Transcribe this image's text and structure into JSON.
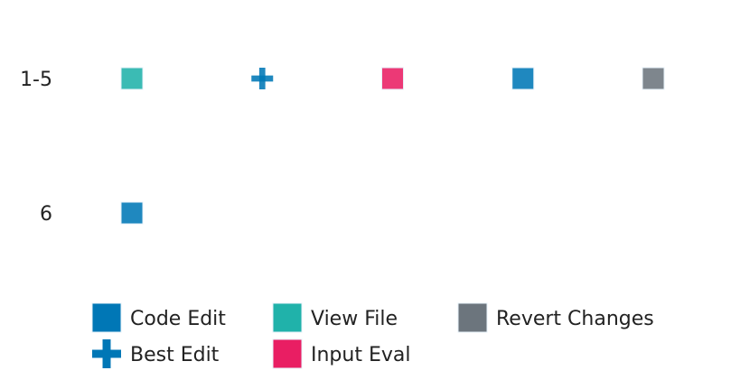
{
  "chart_data": {
    "type": "scatter",
    "title": "",
    "xlabel": "",
    "ylabel": "",
    "grid": false,
    "legend_position": "bottom",
    "row_labels": [
      "1-5",
      "6"
    ],
    "rows": [
      {
        "label": "1-5",
        "steps": [
          {
            "step": 1,
            "action": "View File"
          },
          {
            "step": 2,
            "action": "Best Edit"
          },
          {
            "step": 3,
            "action": "Input Eval"
          },
          {
            "step": 4,
            "action": "Code Edit"
          },
          {
            "step": 5,
            "action": "Revert Changes"
          }
        ]
      },
      {
        "label": "6",
        "steps": [
          {
            "step": 1,
            "action": "Code Edit"
          }
        ]
      }
    ],
    "legend": [
      {
        "name": "Code Edit",
        "color": "#0077b6",
        "marker": "square"
      },
      {
        "name": "View File",
        "color": "#20b2aa",
        "marker": "square"
      },
      {
        "name": "Revert Changes",
        "color": "#6c757d",
        "marker": "square"
      },
      {
        "name": "Best Edit",
        "color": "#0077b6",
        "marker": "plus"
      },
      {
        "name": "Input Eval",
        "color": "#e91e63",
        "marker": "square"
      }
    ]
  }
}
